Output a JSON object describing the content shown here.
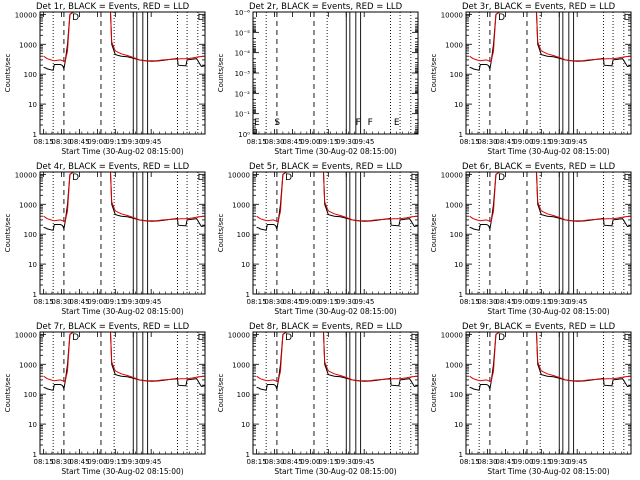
{
  "xtick_labels": [
    "08:15",
    "08:30",
    "08:45",
    "09:00",
    "09:15",
    "09:30",
    "09:45"
  ],
  "xlabel": "Start Time (30-Aug-02 08:15:00)",
  "ylabel": "Counts/sec",
  "colors": {
    "events": "#000000",
    "lld": "#dd0000",
    "axes": "#000000"
  },
  "chart_data": [
    {
      "type": "line",
      "title": "Det 1r, BLACK = Events, RED = LLD",
      "profile": "main",
      "xlabel": "Start Time (30-Aug-02 08:15:00)",
      "ylabel": "Counts/sec",
      "ylog": true,
      "ylim": [
        1,
        12000
      ],
      "ytick_labels": [
        "1",
        "10",
        "100",
        "1000",
        "10000"
      ],
      "ytick_values": [
        1,
        10,
        100,
        1000,
        10000
      ],
      "xlim_min": [
        0,
        45
      ],
      "markers": [
        {
          "label": "D",
          "t": 23
        },
        {
          "label": "L",
          "t": 128
        }
      ]
    },
    {
      "type": "line",
      "title": "Det 2r, BLACK = Events, RED = LLD",
      "profile": "empty",
      "xlabel": "Start Time (30-Aug-02 08:15:00)",
      "ylabel": "Counts/sec",
      "ylog": true,
      "ylim": [
        1,
        1e-06
      ],
      "ytick_labels": [
        "10⁰",
        "10⁻¹",
        "10⁻²",
        "10⁻³",
        "10⁻⁴",
        "10⁻⁵",
        "10⁻⁶"
      ],
      "ytick_values": [
        1,
        0.1,
        0.01,
        0.001,
        0.0001,
        1e-05,
        1e-06
      ],
      "xlim_min": [
        0,
        45
      ],
      "markers": [
        {
          "label": "E",
          "t": -3
        },
        {
          "label": "S",
          "t": 14
        },
        {
          "label": "F",
          "t": 82
        },
        {
          "label": "F",
          "t": 92
        },
        {
          "label": "E",
          "t": 114
        }
      ]
    },
    {
      "type": "line",
      "title": "Det 3r, BLACK = Events, RED = LLD",
      "profile": "main",
      "xlabel": "Start Time (30-Aug-02 08:15:00)",
      "ylabel": "Counts/sec",
      "ylog": true,
      "ylim": [
        1,
        12000
      ],
      "ytick_labels": [
        "1",
        "10",
        "100",
        "1000",
        "10000"
      ],
      "ytick_values": [
        1,
        10,
        100,
        1000,
        10000
      ],
      "xlim_min": [
        0,
        45
      ],
      "markers": [
        {
          "label": "D",
          "t": 23
        },
        {
          "label": "L",
          "t": 128
        }
      ]
    },
    {
      "type": "line",
      "title": "Det 4r, BLACK = Events, RED = LLD",
      "profile": "main",
      "xlabel": "Start Time (30-Aug-02 08:15:00)",
      "ylabel": "Counts/sec",
      "ylog": true,
      "ylim": [
        1,
        12000
      ],
      "ytick_labels": [
        "1",
        "10",
        "100",
        "1000",
        "10000"
      ],
      "ytick_values": [
        1,
        10,
        100,
        1000,
        10000
      ],
      "xlim_min": [
        0,
        45
      ],
      "markers": [
        {
          "label": "D",
          "t": 23
        },
        {
          "label": "L",
          "t": 128
        }
      ]
    },
    {
      "type": "line",
      "title": "Det 5r, BLACK = Events, RED = LLD",
      "profile": "main",
      "xlabel": "Start Time (30-Aug-02 08:15:00)",
      "ylabel": "Counts/sec",
      "ylog": true,
      "ylim": [
        1,
        12000
      ],
      "ytick_labels": [
        "1",
        "10",
        "100",
        "1000",
        "10000"
      ],
      "ytick_values": [
        1,
        10,
        100,
        1000,
        10000
      ],
      "xlim_min": [
        0,
        45
      ],
      "markers": [
        {
          "label": "D",
          "t": 23
        },
        {
          "label": "L",
          "t": 128
        }
      ]
    },
    {
      "type": "line",
      "title": "Det 6r, BLACK = Events, RED = LLD",
      "profile": "main",
      "xlabel": "Start Time (30-Aug-02 08:15:00)",
      "ylabel": "Counts/sec",
      "ylog": true,
      "ylim": [
        1,
        12000
      ],
      "ytick_labels": [
        "1",
        "10",
        "100",
        "1000",
        "10000"
      ],
      "ytick_values": [
        1,
        10,
        100,
        1000,
        10000
      ],
      "xlim_min": [
        0,
        45
      ],
      "markers": [
        {
          "label": "D",
          "t": 23
        },
        {
          "label": "L",
          "t": 128
        }
      ]
    },
    {
      "type": "line",
      "title": "Det 7r, BLACK = Events, RED = LLD",
      "profile": "main",
      "xlabel": "Start Time (30-Aug-02 08:15:00)",
      "ylabel": "Counts/sec",
      "ylog": true,
      "ylim": [
        1,
        12000
      ],
      "ytick_labels": [
        "1",
        "10",
        "100",
        "1000",
        "10000"
      ],
      "ytick_values": [
        1,
        10,
        100,
        1000,
        10000
      ],
      "xlim_min": [
        0,
        45
      ],
      "markers": [
        {
          "label": "D",
          "t": 23
        },
        {
          "label": "L",
          "t": 128
        }
      ]
    },
    {
      "type": "line",
      "title": "Det 8r, BLACK = Events, RED = LLD",
      "profile": "main",
      "xlabel": "Start Time (30-Aug-02 08:15:00)",
      "ylabel": "Counts/sec",
      "ylog": true,
      "ylim": [
        1,
        12000
      ],
      "ytick_labels": [
        "1",
        "10",
        "100",
        "1000",
        "10000"
      ],
      "ytick_values": [
        1,
        10,
        100,
        1000,
        10000
      ],
      "xlim_min": [
        0,
        45
      ],
      "markers": [
        {
          "label": "D",
          "t": 23
        },
        {
          "label": "L",
          "t": 128
        }
      ]
    },
    {
      "type": "line",
      "title": "Det 9r, BLACK = Events, RED = LLD",
      "profile": "main",
      "xlabel": "Start Time (30-Aug-02 08:15:00)",
      "ylabel": "Counts/sec",
      "ylog": true,
      "ylim": [
        1,
        12000
      ],
      "ytick_labels": [
        "1",
        "10",
        "100",
        "1000",
        "10000"
      ],
      "ytick_values": [
        1,
        10,
        100,
        1000,
        10000
      ],
      "xlim_min": [
        0,
        45
      ],
      "markers": [
        {
          "label": "D",
          "t": 23
        },
        {
          "label": "L",
          "t": 128
        }
      ]
    }
  ],
  "events_series": {
    "name": "Events",
    "x": [
      0,
      2,
      3,
      8,
      9,
      14,
      15,
      16,
      17,
      18,
      20,
      22,
      25,
      28,
      35,
      42,
      50,
      56,
      57,
      60,
      65,
      70,
      75,
      80,
      85,
      90,
      95,
      100,
      105,
      110,
      112,
      112.5,
      118,
      119,
      120,
      125,
      128,
      132,
      135
    ],
    "y": [
      170,
      160,
      150,
      135,
      210,
      210,
      205,
      190,
      150,
      250,
      1000,
      10000,
      12000,
      12000,
      12000,
      12000,
      12000,
      12000,
      1000,
      450,
      400,
      380,
      340,
      300,
      280,
      270,
      275,
      290,
      310,
      330,
      340,
      200,
      190,
      190,
      300,
      320,
      330,
      180,
      190
    ]
  },
  "lld_series": {
    "name": "LLD",
    "x": [
      0,
      3,
      6,
      9,
      14,
      16,
      18,
      20,
      22,
      25,
      28,
      35,
      42,
      50,
      56,
      57,
      60,
      65,
      70,
      75,
      80,
      85,
      90,
      95,
      100,
      105,
      110,
      115,
      120,
      125,
      130,
      135
    ],
    "y": [
      400,
      330,
      300,
      280,
      300,
      280,
      260,
      600,
      10000,
      12000,
      12000,
      12000,
      12000,
      12000,
      12000,
      1200,
      600,
      480,
      420,
      360,
      300,
      280,
      280,
      285,
      300,
      310,
      320,
      330,
      330,
      350,
      380,
      400
    ]
  },
  "vlines": [
    {
      "t": 8,
      "style": "dotted"
    },
    {
      "t": 17,
      "style": "dashed"
    },
    {
      "t": 48,
      "style": "dashed"
    },
    {
      "t": 59,
      "style": "dotted"
    },
    {
      "t": 75,
      "style": "solid"
    },
    {
      "t": 78,
      "style": "solid"
    },
    {
      "t": 83,
      "style": "solid"
    },
    {
      "t": 87,
      "style": "solid"
    },
    {
      "t": 112,
      "style": "dotted"
    },
    {
      "t": 120,
      "style": "dotted"
    },
    {
      "t": 129,
      "style": "dotted"
    }
  ]
}
